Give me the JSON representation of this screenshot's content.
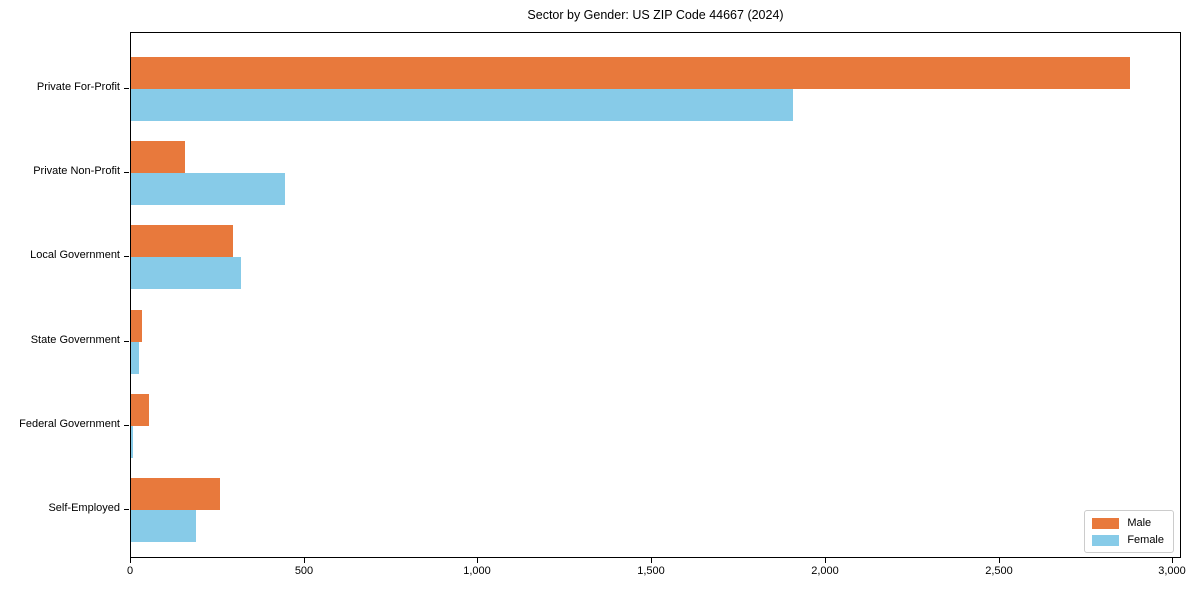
{
  "title": "Sector by Gender: US ZIP Code 44667 (2024)",
  "colors": {
    "male": "#E8793C",
    "female": "#87CBE8",
    "axis": "#000000",
    "legend_border": "#CCCCCC",
    "background": "#FFFFFF"
  },
  "chart_data": {
    "type": "bar",
    "orientation": "horizontal",
    "title": "Sector by Gender: US ZIP Code 44667 (2024)",
    "categories": [
      "Private For-Profit",
      "Private Non-Profit",
      "Local Government",
      "State Government",
      "Federal Government",
      "Self-Employed"
    ],
    "series": [
      {
        "name": "Male",
        "color": "#E8793C",
        "values": [
          2878,
          157,
          295,
          33,
          52,
          257
        ]
      },
      {
        "name": "Female",
        "color": "#87CBE8",
        "values": [
          1908,
          444,
          318,
          24,
          6,
          188
        ]
      }
    ],
    "xlim": [
      0,
      3022
    ],
    "xticks": [
      0,
      500,
      1000,
      1500,
      2000,
      2500,
      3000
    ],
    "xtick_labels": [
      "0",
      "500",
      "1,000",
      "1,500",
      "2,000",
      "2,500",
      "3,000"
    ],
    "ylabel": "",
    "xlabel": "",
    "grid": false,
    "legend_position": "lower right"
  },
  "legend": {
    "items": [
      {
        "label": "Male"
      },
      {
        "label": "Female"
      }
    ]
  }
}
